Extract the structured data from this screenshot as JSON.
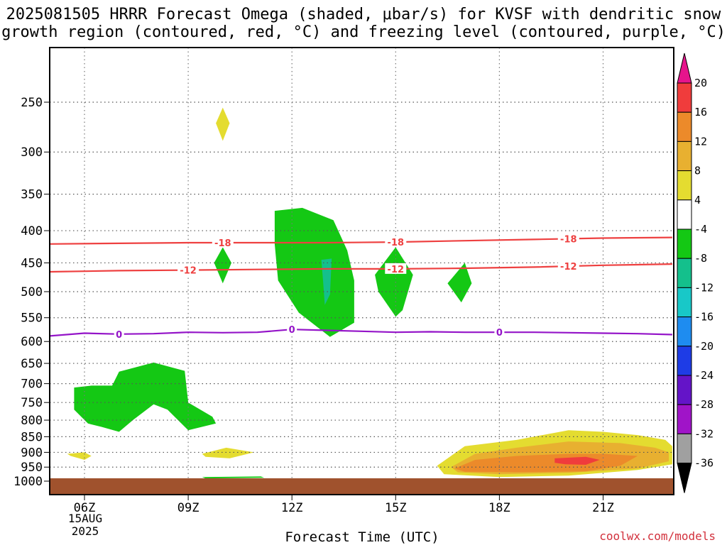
{
  "title_line1": "2025081505 HRRR Forecast Omega (shaded, μbar/s) for KVSF with dendritic snow",
  "title_line2": "growth region (contoured, red, °C) and freezing level (contoured, purple, °C)",
  "x_axis_label": "Forecast Time (UTC)",
  "date_line1": "15AUG",
  "date_line2": "2025",
  "credit": "coolwx.com/models",
  "chart_data": {
    "type": "heatmap",
    "title": "2025081505 HRRR Forecast Omega (shaded, μbar/s) for KVSF with dendritic snow growth region (contoured, red, °C) and freezing level (contoured, purple, °C)",
    "xlabel": "Forecast Time (UTC)",
    "ylabel": "",
    "x_range_hours": [
      5,
      23
    ],
    "y_range_hpa": [
      1000,
      200
    ],
    "y_scale": "log-pressure",
    "grid": true,
    "x_ticks": [
      {
        "hour": 6,
        "label": "06Z"
      },
      {
        "hour": 9,
        "label": "09Z"
      },
      {
        "hour": 12,
        "label": "12Z"
      },
      {
        "hour": 15,
        "label": "15Z"
      },
      {
        "hour": 18,
        "label": "18Z"
      },
      {
        "hour": 21,
        "label": "21Z"
      }
    ],
    "y_ticks": [
      250,
      300,
      350,
      400,
      450,
      500,
      550,
      600,
      650,
      700,
      750,
      800,
      850,
      900,
      950,
      1000
    ],
    "colorbar": {
      "levels": [
        20,
        16,
        12,
        8,
        4,
        -4,
        -8,
        -12,
        -16,
        -20,
        -24,
        -28,
        -32,
        -36
      ],
      "colors": [
        {
          "from": 16,
          "to": 20,
          "color": "#f03c3c"
        },
        {
          "from": 12,
          "to": 16,
          "color": "#ec8a2a"
        },
        {
          "from": 8,
          "to": 12,
          "color": "#e8b030"
        },
        {
          "from": 4,
          "to": 8,
          "color": "#e4dc30"
        },
        {
          "from": -4,
          "to": 4,
          "color": "#ffffff"
        },
        {
          "from": -8,
          "to": -4,
          "color": "#14c814"
        },
        {
          "from": -12,
          "to": -8,
          "color": "#14c08c"
        },
        {
          "from": -16,
          "to": -12,
          "color": "#18c8c8"
        },
        {
          "from": -20,
          "to": -16,
          "color": "#1e8cf0"
        },
        {
          "from": -24,
          "to": -20,
          "color": "#1e3ce6"
        },
        {
          "from": -28,
          "to": -24,
          "color": "#6414c8"
        },
        {
          "from": -32,
          "to": -28,
          "color": "#a014c8"
        },
        {
          "from": -36,
          "to": -32,
          "color": "#a0a0a0"
        }
      ],
      "top_arrow_color": "#e6148c",
      "bottom_arrow_color": "#000000"
    },
    "contours": [
      {
        "name": "-18",
        "color": "#ee4040",
        "labels_at_hours": [
          10,
          15,
          20
        ],
        "points": [
          [
            5,
            420
          ],
          [
            7,
            419
          ],
          [
            9,
            418
          ],
          [
            11,
            418
          ],
          [
            13,
            418
          ],
          [
            15,
            417
          ],
          [
            17,
            415
          ],
          [
            19,
            413
          ],
          [
            21,
            411
          ],
          [
            23,
            410
          ]
        ]
      },
      {
        "name": "-12",
        "color": "#ee4040",
        "labels_at_hours": [
          9,
          15,
          20
        ],
        "points": [
          [
            5,
            465
          ],
          [
            7,
            463
          ],
          [
            9,
            462
          ],
          [
            11,
            461
          ],
          [
            13,
            460
          ],
          [
            15,
            460
          ],
          [
            17,
            459
          ],
          [
            19,
            457
          ],
          [
            21,
            454
          ],
          [
            23,
            452
          ]
        ]
      },
      {
        "name": "0",
        "color": "#9414c8",
        "labels_at_hours": [
          7,
          12,
          18
        ],
        "points": [
          [
            5,
            588
          ],
          [
            6,
            582
          ],
          [
            7,
            584
          ],
          [
            8,
            583
          ],
          [
            9,
            580
          ],
          [
            10,
            581
          ],
          [
            11,
            580
          ],
          [
            12,
            574
          ],
          [
            13,
            576
          ],
          [
            14,
            578
          ],
          [
            15,
            580
          ],
          [
            16,
            579
          ],
          [
            17,
            580
          ],
          [
            18,
            580
          ],
          [
            19,
            580
          ],
          [
            20,
            581
          ],
          [
            21,
            582
          ],
          [
            22,
            583
          ],
          [
            23,
            585
          ]
        ]
      }
    ],
    "omega_areas": [
      {
        "level_range": [
          4,
          8
        ],
        "color": "#e4dc30",
        "points": [
          [
            10.0,
            255
          ],
          [
            10.2,
            270
          ],
          [
            10.0,
            288
          ],
          [
            9.8,
            270
          ]
        ]
      },
      {
        "level_range": [
          -8,
          -4
        ],
        "color": "#14c814",
        "points": [
          [
            10.0,
            425
          ],
          [
            10.25,
            450
          ],
          [
            10.0,
            485
          ],
          [
            9.75,
            450
          ]
        ]
      },
      {
        "level_range": [
          -8,
          -4
        ],
        "color": "#14c814",
        "points": [
          [
            11.5,
            372
          ],
          [
            12.3,
            368
          ],
          [
            13.2,
            385
          ],
          [
            13.6,
            430
          ],
          [
            13.8,
            480
          ],
          [
            13.8,
            560
          ],
          [
            13.1,
            590
          ],
          [
            12.2,
            540
          ],
          [
            11.6,
            480
          ],
          [
            11.5,
            420
          ]
        ]
      },
      {
        "level_range": [
          -12,
          -8
        ],
        "color": "#14c08c",
        "points": [
          [
            12.85,
            445
          ],
          [
            13.15,
            443
          ],
          [
            13.1,
            505
          ],
          [
            12.95,
            525
          ],
          [
            12.9,
            480
          ]
        ]
      },
      {
        "level_range": [
          -8,
          -4
        ],
        "color": "#14c814",
        "points": [
          [
            15.0,
            425
          ],
          [
            15.5,
            470
          ],
          [
            15.2,
            535
          ],
          [
            15.0,
            548
          ],
          [
            14.5,
            500
          ],
          [
            14.4,
            470
          ]
        ]
      },
      {
        "level_range": [
          -8,
          -4
        ],
        "color": "#14c814",
        "points": [
          [
            17.0,
            450
          ],
          [
            17.2,
            485
          ],
          [
            16.9,
            520
          ],
          [
            16.5,
            485
          ]
        ]
      },
      {
        "level_range": [
          -8,
          -4
        ],
        "color": "#14c814",
        "points": [
          [
            5.7,
            710
          ],
          [
            6.2,
            705
          ],
          [
            6.8,
            705
          ],
          [
            7.0,
            670
          ],
          [
            8.0,
            648
          ],
          [
            8.9,
            668
          ],
          [
            9.0,
            750
          ],
          [
            9.7,
            790
          ],
          [
            9.8,
            810
          ],
          [
            9.0,
            830
          ],
          [
            8.4,
            770
          ],
          [
            8.0,
            755
          ],
          [
            7.4,
            800
          ],
          [
            7.0,
            835
          ],
          [
            6.5,
            820
          ],
          [
            6.1,
            810
          ],
          [
            5.7,
            770
          ]
        ]
      },
      {
        "level_range": [
          4,
          8
        ],
        "color": "#e4dc30",
        "points": [
          [
            5.5,
            905
          ],
          [
            6.0,
            900
          ],
          [
            6.2,
            912
          ],
          [
            6.0,
            925
          ],
          [
            5.6,
            912
          ]
        ]
      },
      {
        "level_range": [
          4,
          8
        ],
        "color": "#e4dc30",
        "points": [
          [
            9.4,
            905
          ],
          [
            10.1,
            885
          ],
          [
            10.9,
            900
          ],
          [
            10.2,
            920
          ],
          [
            9.5,
            915
          ]
        ]
      },
      {
        "level_range": [
          -8,
          -4
        ],
        "color": "#14c814",
        "points": [
          [
            9.4,
            985
          ],
          [
            11.1,
            983
          ],
          [
            11.2,
            988
          ],
          [
            9.5,
            990
          ]
        ]
      },
      {
        "level_range": [
          4,
          8
        ],
        "color": "#e4dc30",
        "points": [
          [
            16.2,
            945
          ],
          [
            17.0,
            880
          ],
          [
            18.5,
            860
          ],
          [
            20.0,
            830
          ],
          [
            21.0,
            835
          ],
          [
            22.0,
            845
          ],
          [
            22.8,
            860
          ],
          [
            23,
            880
          ],
          [
            23,
            940
          ],
          [
            22.0,
            960
          ],
          [
            20.0,
            980
          ],
          [
            18.0,
            985
          ],
          [
            16.4,
            975
          ]
        ]
      },
      {
        "level_range": [
          8,
          12
        ],
        "color": "#e8b030",
        "points": [
          [
            16.6,
            950
          ],
          [
            17.3,
            905
          ],
          [
            18.5,
            885
          ],
          [
            20.0,
            865
          ],
          [
            21.5,
            870
          ],
          [
            22.5,
            885
          ],
          [
            22.9,
            900
          ],
          [
            22.9,
            930
          ],
          [
            22.0,
            955
          ],
          [
            20.0,
            970
          ],
          [
            18.0,
            975
          ],
          [
            16.8,
            968
          ]
        ]
      },
      {
        "level_range": [
          12,
          16
        ],
        "color": "#ec8a2a",
        "points": [
          [
            16.7,
            955
          ],
          [
            17.3,
            925
          ],
          [
            18.5,
            912
          ],
          [
            20.0,
            905
          ],
          [
            21.0,
            905
          ],
          [
            22.0,
            912
          ],
          [
            21.5,
            945
          ],
          [
            20.5,
            965
          ],
          [
            18.5,
            968
          ],
          [
            17.0,
            966
          ]
        ]
      },
      {
        "level_range": [
          16,
          20
        ],
        "color": "#f03c3c",
        "points": [
          [
            19.6,
            920
          ],
          [
            20.5,
            915
          ],
          [
            20.9,
            925
          ],
          [
            20.5,
            942
          ],
          [
            19.9,
            940
          ],
          [
            19.6,
            935
          ]
        ]
      }
    ],
    "ground": {
      "color": "#a0522d"
    }
  }
}
